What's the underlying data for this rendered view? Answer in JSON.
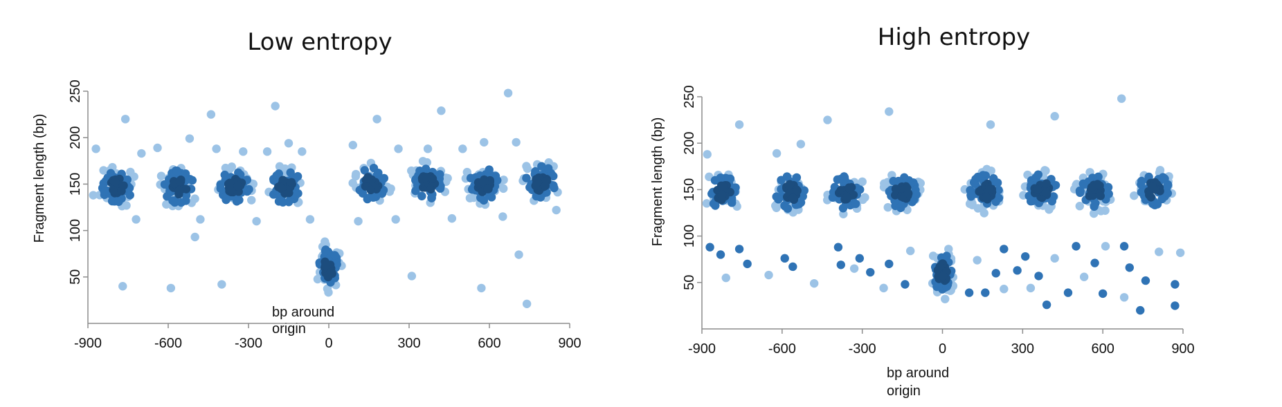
{
  "chart_data": [
    {
      "type": "scatter",
      "title": "Low entropy",
      "xlabel": [
        "bp around",
        "origin"
      ],
      "ylabel": "Fragment length (bp)",
      "xlim": [
        -900,
        900
      ],
      "ylim": [
        0,
        250
      ],
      "xticks": [
        "-900",
        "-600",
        "-300",
        "0",
        "300",
        "600",
        "900"
      ],
      "yticks": [
        "50",
        "100",
        "150",
        "200",
        "250"
      ],
      "legend": "none",
      "grid": false,
      "colors": {
        "light": "#9cc3e6",
        "mid": "#2f73b5",
        "dark": "#1c4d7e"
      },
      "clusters": [
        {
          "x": -790,
          "y": 147
        },
        {
          "x": -560,
          "y": 147
        },
        {
          "x": -350,
          "y": 147
        },
        {
          "x": -160,
          "y": 147
        },
        {
          "x": 0,
          "y": 60
        },
        {
          "x": 160,
          "y": 150
        },
        {
          "x": 370,
          "y": 152
        },
        {
          "x": 580,
          "y": 150
        },
        {
          "x": 790,
          "y": 152
        }
      ],
      "outliers": [
        {
          "x": -870,
          "y": 188
        },
        {
          "x": -880,
          "y": 138
        },
        {
          "x": -760,
          "y": 220
        },
        {
          "x": -700,
          "y": 183
        },
        {
          "x": -720,
          "y": 112
        },
        {
          "x": -770,
          "y": 40
        },
        {
          "x": -640,
          "y": 189
        },
        {
          "x": -590,
          "y": 38
        },
        {
          "x": -520,
          "y": 199
        },
        {
          "x": -500,
          "y": 93
        },
        {
          "x": -480,
          "y": 112
        },
        {
          "x": -440,
          "y": 225
        },
        {
          "x": -420,
          "y": 188
        },
        {
          "x": -400,
          "y": 42
        },
        {
          "x": -320,
          "y": 185
        },
        {
          "x": -270,
          "y": 110
        },
        {
          "x": -230,
          "y": 185
        },
        {
          "x": -200,
          "y": 234
        },
        {
          "x": -150,
          "y": 194
        },
        {
          "x": -100,
          "y": 185
        },
        {
          "x": -70,
          "y": 112
        },
        {
          "x": 90,
          "y": 192
        },
        {
          "x": 110,
          "y": 110
        },
        {
          "x": 180,
          "y": 220
        },
        {
          "x": 260,
          "y": 188
        },
        {
          "x": 250,
          "y": 112
        },
        {
          "x": 310,
          "y": 51
        },
        {
          "x": 370,
          "y": 188
        },
        {
          "x": 420,
          "y": 229
        },
        {
          "x": 460,
          "y": 113
        },
        {
          "x": 500,
          "y": 188
        },
        {
          "x": 570,
          "y": 38
        },
        {
          "x": 580,
          "y": 195
        },
        {
          "x": 670,
          "y": 248
        },
        {
          "x": 700,
          "y": 195
        },
        {
          "x": 710,
          "y": 74
        },
        {
          "x": 740,
          "y": 21
        },
        {
          "x": 650,
          "y": 115
        },
        {
          "x": 850,
          "y": 122
        }
      ]
    },
    {
      "type": "scatter",
      "title": "High entropy",
      "xlabel": [
        "bp around",
        "origin"
      ],
      "ylabel": "Fragment length (bp)",
      "xlim": [
        -900,
        900
      ],
      "ylim": [
        0,
        250
      ],
      "xticks": [
        "-900",
        "-600",
        "-300",
        "0",
        "300",
        "600",
        "900"
      ],
      "yticks": [
        "50",
        "100",
        "150",
        "200",
        "250"
      ],
      "legend": "none",
      "grid": false,
      "colors": {
        "light": "#9cc3e6",
        "mid": "#2f73b5",
        "dark": "#1c4d7e"
      },
      "clusters": [
        {
          "x": -820,
          "y": 147
        },
        {
          "x": -570,
          "y": 147
        },
        {
          "x": -360,
          "y": 147
        },
        {
          "x": -150,
          "y": 147
        },
        {
          "x": 0,
          "y": 60
        },
        {
          "x": 160,
          "y": 148
        },
        {
          "x": 370,
          "y": 150
        },
        {
          "x": 570,
          "y": 148
        },
        {
          "x": 790,
          "y": 150
        }
      ],
      "outliers": [
        {
          "x": -870,
          "y": 88
        },
        {
          "x": -830,
          "y": 80
        },
        {
          "x": -810,
          "y": 55
        },
        {
          "x": -760,
          "y": 86
        },
        {
          "x": -730,
          "y": 70
        },
        {
          "x": -650,
          "y": 58
        },
        {
          "x": -590,
          "y": 76
        },
        {
          "x": -560,
          "y": 67
        },
        {
          "x": -480,
          "y": 49
        },
        {
          "x": -390,
          "y": 88
        },
        {
          "x": -380,
          "y": 69
        },
        {
          "x": -330,
          "y": 65
        },
        {
          "x": -310,
          "y": 76
        },
        {
          "x": -270,
          "y": 61
        },
        {
          "x": -220,
          "y": 44
        },
        {
          "x": -200,
          "y": 70
        },
        {
          "x": -140,
          "y": 48
        },
        {
          "x": -120,
          "y": 84
        },
        {
          "x": -880,
          "y": 188
        },
        {
          "x": -760,
          "y": 220
        },
        {
          "x": -430,
          "y": 225
        },
        {
          "x": -200,
          "y": 234
        },
        {
          "x": 180,
          "y": 220
        },
        {
          "x": 420,
          "y": 229
        },
        {
          "x": 670,
          "y": 248
        },
        {
          "x": -530,
          "y": 199
        },
        {
          "x": -620,
          "y": 189
        },
        {
          "x": 100,
          "y": 39
        },
        {
          "x": 160,
          "y": 39
        },
        {
          "x": 230,
          "y": 43
        },
        {
          "x": 280,
          "y": 63
        },
        {
          "x": 310,
          "y": 78
        },
        {
          "x": 330,
          "y": 44
        },
        {
          "x": 360,
          "y": 57
        },
        {
          "x": 390,
          "y": 26
        },
        {
          "x": 420,
          "y": 76
        },
        {
          "x": 470,
          "y": 39
        },
        {
          "x": 500,
          "y": 89
        },
        {
          "x": 530,
          "y": 56
        },
        {
          "x": 570,
          "y": 71
        },
        {
          "x": 600,
          "y": 38
        },
        {
          "x": 610,
          "y": 89
        },
        {
          "x": 680,
          "y": 89
        },
        {
          "x": 700,
          "y": 66
        },
        {
          "x": 680,
          "y": 34
        },
        {
          "x": 740,
          "y": 20
        },
        {
          "x": 760,
          "y": 52
        },
        {
          "x": 810,
          "y": 83
        },
        {
          "x": 870,
          "y": 48
        },
        {
          "x": 870,
          "y": 25
        },
        {
          "x": 890,
          "y": 82
        },
        {
          "x": 230,
          "y": 86
        },
        {
          "x": 200,
          "y": 60
        },
        {
          "x": 130,
          "y": 74
        }
      ]
    }
  ]
}
